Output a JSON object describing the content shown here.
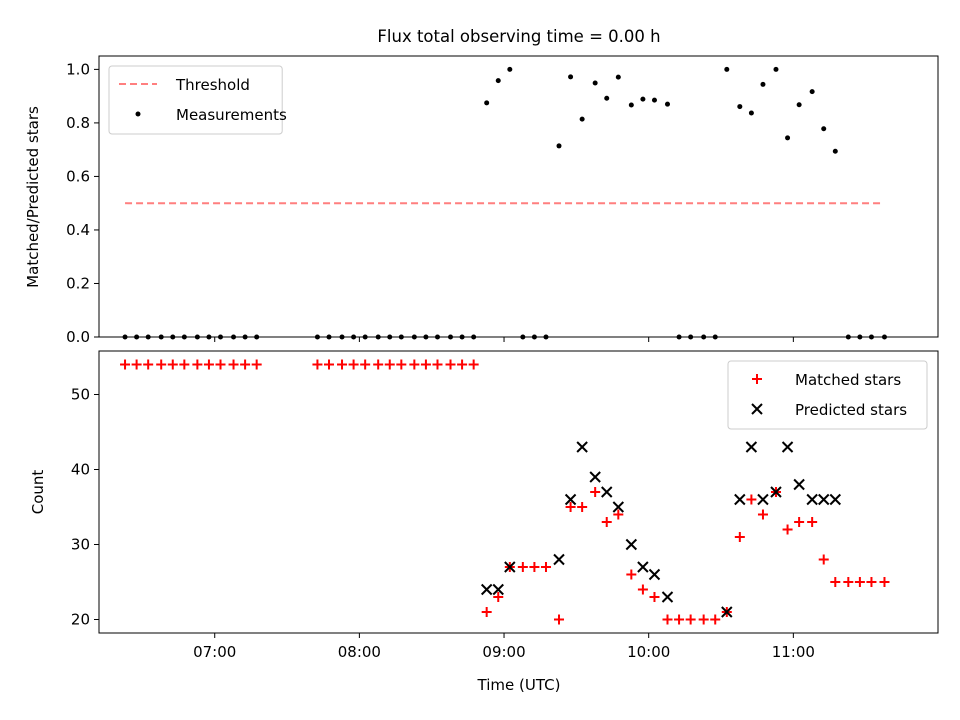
{
  "chart_data": {
    "type": "scatter",
    "title": "Flux total observing time = 0.00 h",
    "xlabel": "Time (UTC)",
    "xticks": [
      {
        "value": 7.0,
        "label": "07:00"
      },
      {
        "value": 8.0,
        "label": "08:00"
      },
      {
        "value": 9.0,
        "label": "09:00"
      },
      {
        "value": 10.0,
        "label": "10:00"
      },
      {
        "value": 11.0,
        "label": "11:00"
      }
    ],
    "xlim": [
      6.2,
      12.0
    ],
    "panels": [
      {
        "ylabel": "Matched/Predicted stars",
        "ylim": [
          0,
          1.05
        ],
        "yticks": [
          {
            "value": 0.0,
            "label": "0.0"
          },
          {
            "value": 0.2,
            "label": "0.2"
          },
          {
            "value": 0.4,
            "label": "0.4"
          },
          {
            "value": 0.6,
            "label": "0.6"
          },
          {
            "value": 0.8,
            "label": "0.8"
          },
          {
            "value": 1.0,
            "label": "1.0"
          }
        ],
        "legend_position": "upper-left",
        "series": [
          {
            "name": "Threshold",
            "kind": "dashed-line",
            "color": "#ff7f7f",
            "x": [
              6.38,
              11.62
            ],
            "y": [
              0.5,
              0.5
            ]
          },
          {
            "name": "Measurements",
            "kind": "dot",
            "color": "#000000",
            "x": [
              6.38,
              6.46,
              6.54,
              6.63,
              6.71,
              6.79,
              6.88,
              6.96,
              7.04,
              7.13,
              7.21,
              7.29,
              7.71,
              7.79,
              7.88,
              7.96,
              8.04,
              8.13,
              8.21,
              8.29,
              8.38,
              8.46,
              8.54,
              8.63,
              8.71,
              8.79,
              8.88,
              8.96,
              9.04,
              9.13,
              9.21,
              9.29,
              9.38,
              9.46,
              9.54,
              9.63,
              9.71,
              9.79,
              9.88,
              9.96,
              10.04,
              10.13,
              10.21,
              10.29,
              10.38,
              10.46,
              10.54,
              10.63,
              10.71,
              10.79,
              10.88,
              10.96,
              11.04,
              11.13,
              11.21,
              11.29,
              11.38,
              11.46,
              11.54,
              11.63
            ],
            "y": [
              0,
              0,
              0,
              0,
              0,
              0,
              0,
              0,
              0,
              0,
              0,
              0,
              0,
              0,
              0,
              0,
              0,
              0,
              0,
              0,
              0,
              0,
              0,
              0,
              0,
              0,
              0.875,
              0.958,
              1.0,
              0,
              0,
              0,
              0.714,
              0.972,
              0.814,
              0.949,
              0.892,
              0.971,
              0.867,
              0.889,
              0.885,
              0.87,
              0,
              0,
              0,
              0,
              1.0,
              0.861,
              0.837,
              0.944,
              1.0,
              0.744,
              0.868,
              0.917,
              0.778,
              0.694,
              0,
              0,
              0,
              0
            ]
          }
        ]
      },
      {
        "ylabel": "Count",
        "ylim": [
          18.2,
          55.8
        ],
        "yticks": [
          {
            "value": 20,
            "label": "20"
          },
          {
            "value": 30,
            "label": "30"
          },
          {
            "value": 40,
            "label": "40"
          },
          {
            "value": 50,
            "label": "50"
          }
        ],
        "legend_position": "upper-right",
        "series": [
          {
            "name": "Matched stars",
            "kind": "plus",
            "color": "#ff0000",
            "x": [
              6.38,
              6.46,
              6.54,
              6.63,
              6.71,
              6.79,
              6.88,
              6.96,
              7.04,
              7.13,
              7.21,
              7.29,
              7.71,
              7.79,
              7.88,
              7.96,
              8.04,
              8.13,
              8.21,
              8.29,
              8.38,
              8.46,
              8.54,
              8.63,
              8.71,
              8.79,
              8.88,
              8.96,
              9.04,
              9.13,
              9.21,
              9.29,
              9.38,
              9.46,
              9.54,
              9.63,
              9.71,
              9.79,
              9.88,
              9.96,
              10.04,
              10.13,
              10.21,
              10.29,
              10.38,
              10.46,
              10.54,
              10.63,
              10.71,
              10.79,
              10.88,
              10.96,
              11.04,
              11.13,
              11.21,
              11.29,
              11.38,
              11.46,
              11.54,
              11.63
            ],
            "y": [
              54,
              54,
              54,
              54,
              54,
              54,
              54,
              54,
              54,
              54,
              54,
              54,
              54,
              54,
              54,
              54,
              54,
              54,
              54,
              54,
              54,
              54,
              54,
              54,
              54,
              54,
              21,
              23,
              27,
              27,
              27,
              27,
              20,
              35,
              35,
              37,
              33,
              34,
              26,
              24,
              23,
              20,
              20,
              20,
              20,
              20,
              21,
              31,
              36,
              34,
              37,
              32,
              33,
              33,
              28,
              25,
              25,
              25,
              25,
              25
            ]
          },
          {
            "name": "Predicted stars",
            "kind": "x",
            "color": "#000000",
            "x": [
              8.88,
              8.96,
              9.04,
              9.38,
              9.46,
              9.54,
              9.63,
              9.71,
              9.79,
              9.88,
              9.96,
              10.04,
              10.13,
              10.54,
              10.63,
              10.71,
              10.79,
              10.88,
              10.96,
              11.04,
              11.13,
              11.21,
              11.29
            ],
            "y": [
              24,
              24,
              27,
              28,
              36,
              43,
              39,
              37,
              35,
              30,
              27,
              26,
              23,
              21,
              36,
              43,
              36,
              37,
              43,
              38,
              36,
              36,
              36
            ]
          }
        ]
      }
    ]
  }
}
